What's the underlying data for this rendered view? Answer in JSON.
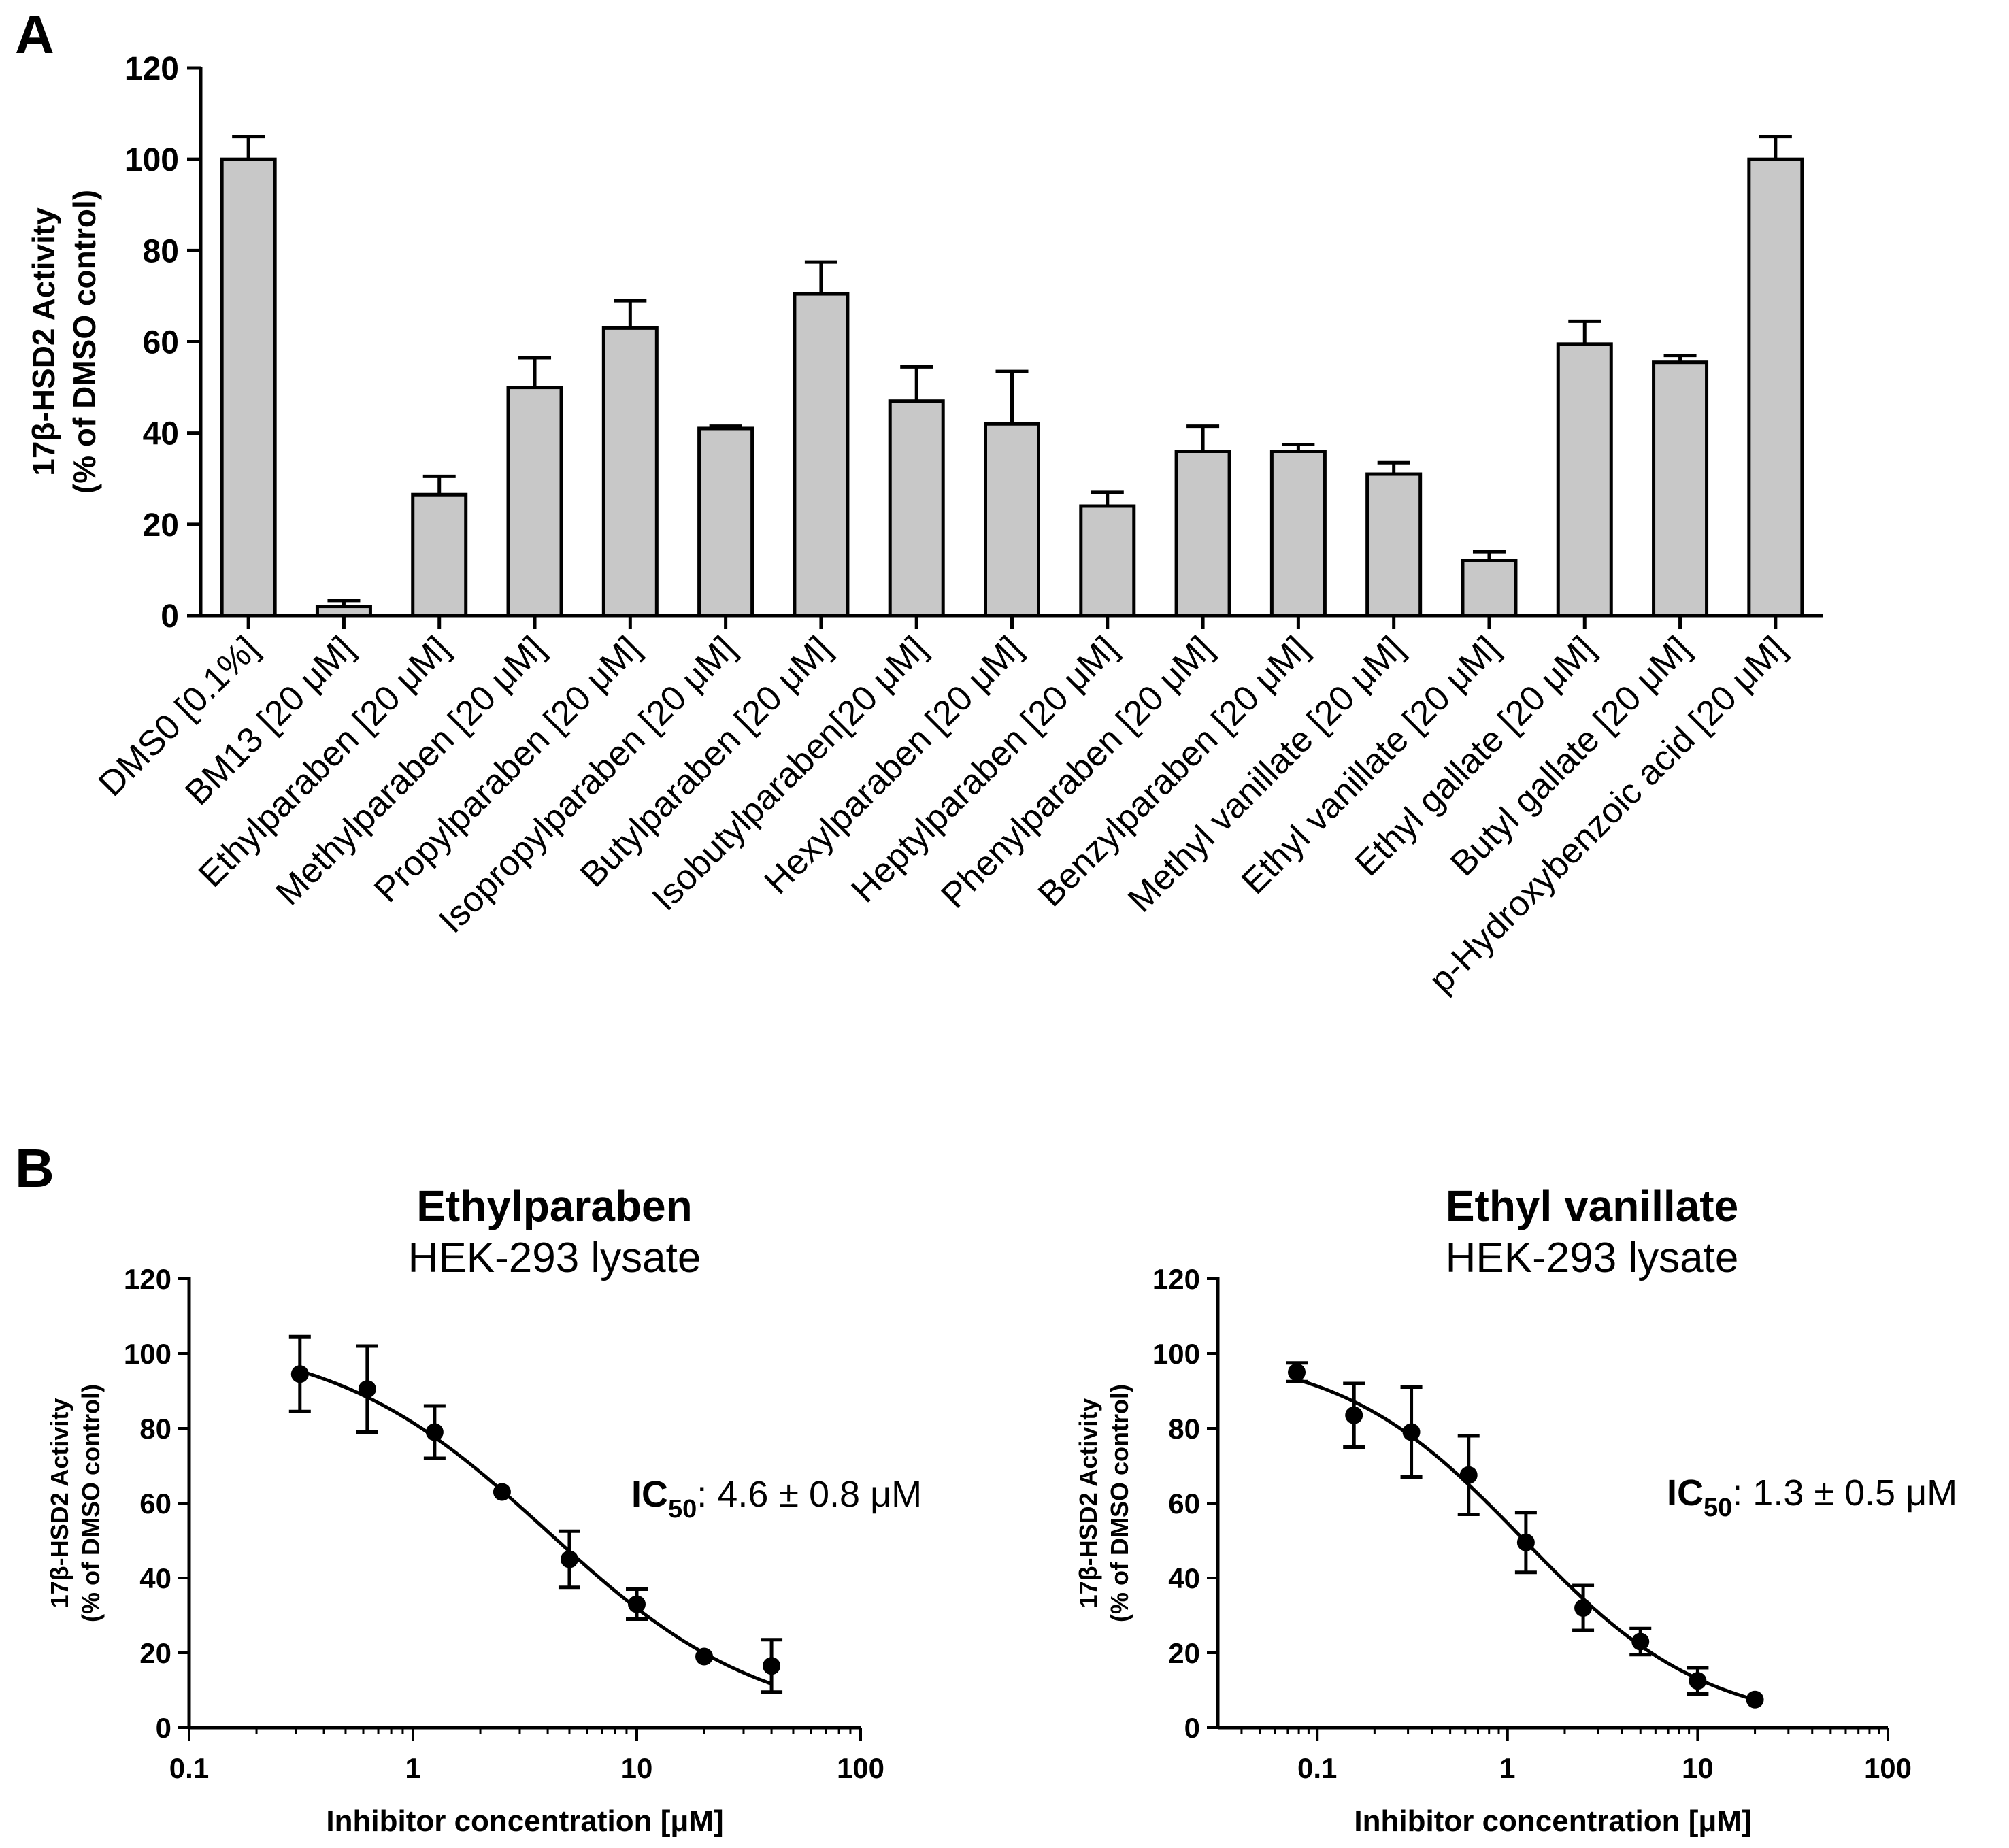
{
  "panels": {
    "a": "A",
    "b": "B"
  },
  "chart_data": [
    {
      "type": "bar",
      "panel": "A",
      "ylabel_lines": [
        "17β-HSD2 Activity",
        "(% of DMSO control)"
      ],
      "ylim": [
        0,
        120
      ],
      "yticks": [
        0,
        20,
        40,
        60,
        80,
        100,
        120
      ],
      "bar_color": "#c8c8c8",
      "categories": [
        "DMS0 [0.1%]",
        "BM13 [20 μM]",
        "Ethylparaben [20 μM]",
        "Methylparaben [20 μM]",
        "Propylparaben [20 μM]",
        "Isopropylparaben [20 μM]",
        "Butylparaben [20 μM]",
        "Isobutylparaben[20 μM]",
        "Hexylparaben [20 μM]",
        "Heptylparaben [20 μM]",
        "Phenylparaben [20 μM]",
        "Benzylparaben [20 μM]",
        "Methyl vanillate [20 μM]",
        "Ethyl vanillate [20 μM]",
        "Ethyl gallate [20 μM]",
        "Butyl gallate [20 μM]",
        "p-Hydroxybenzoic acid [20 μM]"
      ],
      "values": [
        100,
        2,
        26.5,
        50,
        63,
        41,
        70.5,
        47,
        42,
        24,
        36,
        36,
        31,
        12,
        59.5,
        55.5,
        100
      ],
      "errors": [
        5,
        1.3,
        4,
        6.5,
        6,
        0.5,
        7,
        7.5,
        11.5,
        3,
        5.5,
        1.5,
        2.5,
        2,
        5,
        1.5,
        5
      ]
    },
    {
      "type": "scatter",
      "panel": "B",
      "title": "Ethylparaben",
      "subtitle": "HEK-293 lysate",
      "xlabel": "Inhibitor concentration [μM]",
      "ylabel_lines": [
        "17β-HSD2 Activity",
        "(% of DMSO control)"
      ],
      "x_scale": "log",
      "xlim": [
        0.1,
        100
      ],
      "xticks": [
        0.1,
        1,
        10,
        100
      ],
      "xtick_labels": [
        "0.1",
        "1",
        "10",
        "100"
      ],
      "ylim": [
        0,
        120
      ],
      "yticks": [
        0,
        20,
        40,
        60,
        80,
        100,
        120
      ],
      "x": [
        0.3125,
        0.625,
        1.25,
        2.5,
        5,
        10,
        20,
        40
      ],
      "y": [
        94.5,
        90.5,
        79,
        63,
        45,
        33,
        19,
        16.5
      ],
      "errors": [
        10,
        11.5,
        7,
        0,
        7.5,
        4,
        0,
        7
      ],
      "ic50_label": "IC",
      "ic50_sub": "50",
      "ic50_value": ": 4.6 ± 0.8 μM",
      "fit_curve": true
    },
    {
      "type": "scatter",
      "panel": "B",
      "title": "Ethyl vanillate",
      "subtitle": "HEK-293 lysate",
      "xlabel": "Inhibitor concentration [μM]",
      "ylabel_lines": [
        "17β-HSD2 Activity",
        "(% of DMSO control)"
      ],
      "x_scale": "log",
      "xlim": [
        0.03,
        100
      ],
      "xticks": [
        0.1,
        1,
        10,
        100
      ],
      "xtick_labels": [
        "0.1",
        "1",
        "10",
        "100"
      ],
      "ylim": [
        0,
        120
      ],
      "yticks": [
        0,
        20,
        40,
        60,
        80,
        100,
        120
      ],
      "x": [
        0.078,
        0.156,
        0.3125,
        0.625,
        1.25,
        2.5,
        5,
        10,
        20
      ],
      "y": [
        95,
        83.5,
        79,
        67.5,
        49.5,
        32,
        23,
        12.5,
        7.5
      ],
      "errors": [
        2.5,
        8.5,
        12,
        10.5,
        8,
        6,
        3.5,
        3.5,
        0
      ],
      "ic50_label": "IC",
      "ic50_sub": "50",
      "ic50_value": ": 1.3 ± 0.5 μM",
      "fit_curve": true
    }
  ]
}
